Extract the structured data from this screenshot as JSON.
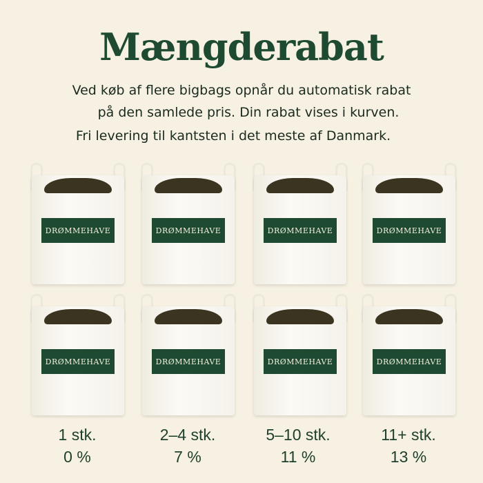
{
  "title": "Mængderabat",
  "subtitle_lines": [
    "Ved køb af flere bigbags opnår du automatisk rabat",
    "på den samlede pris. Din rabat vises i kurven.",
    "Fri levering til kantsten i det meste af Danmark."
  ],
  "bag_label": "DRØMMEHAVE",
  "tiers": [
    {
      "qty": "1 stk.",
      "discount": "0 %"
    },
    {
      "qty": "2–4 stk.",
      "discount": "7 %"
    },
    {
      "qty": "5–10 stk.",
      "discount": "11 %"
    },
    {
      "qty": "11+ stk.",
      "discount": "13 %"
    }
  ],
  "colors": {
    "brand_green": "#1f4a32",
    "background": "#f6f1e2"
  }
}
